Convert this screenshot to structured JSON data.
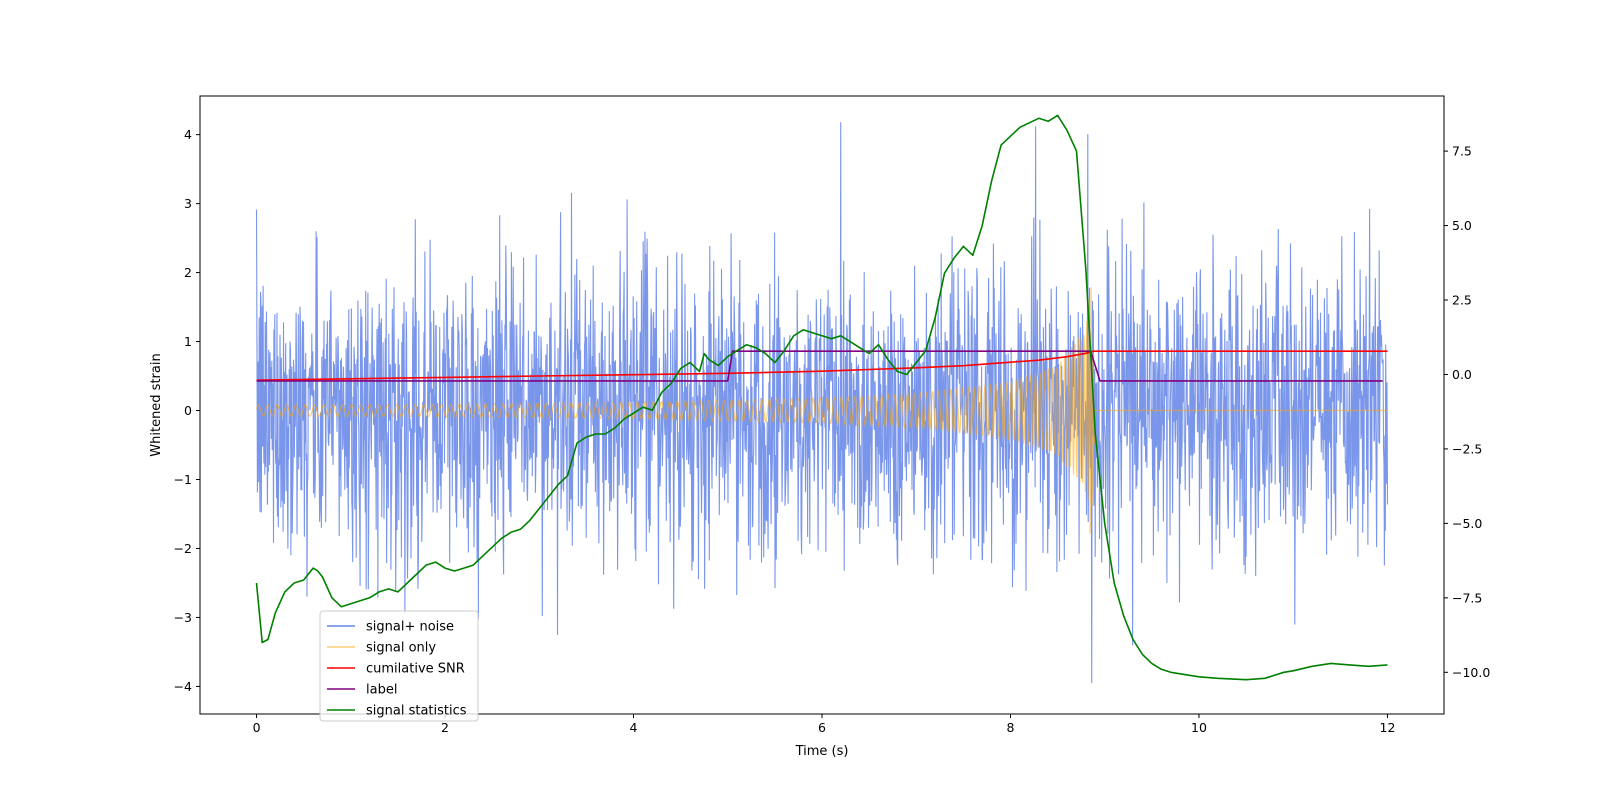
{
  "chart_data": {
    "type": "line",
    "title": "",
    "xlabel": "Time (s)",
    "ylabel": "Whitened strain",
    "y2label": "",
    "xlim": [
      -0.6,
      12.6
    ],
    "ylim": [
      -4.4,
      4.56
    ],
    "y2lim": [
      -11.4,
      9.35
    ],
    "xticks": [
      0,
      2,
      4,
      6,
      8,
      10,
      12
    ],
    "xtick_labels": [
      "0",
      "2",
      "4",
      "6",
      "8",
      "10",
      "12"
    ],
    "yticks": [
      -4,
      -3,
      -2,
      -1,
      0,
      1,
      2,
      3,
      4
    ],
    "ytick_labels": [
      "−4",
      "−3",
      "−2",
      "−1",
      "0",
      "1",
      "2",
      "3",
      "4"
    ],
    "y2ticks": [
      -10.0,
      -7.5,
      -5.0,
      -2.5,
      0.0,
      2.5,
      5.0,
      7.5
    ],
    "y2tick_labels": [
      "−10.0",
      "−7.5",
      "−5.0",
      "−2.5",
      "0.0",
      "2.5",
      "5.0",
      "7.5"
    ],
    "grid": false,
    "legend_position": "lower-left",
    "series": [
      {
        "name": "signal+ noise",
        "axis": "left",
        "color": "#4169e1",
        "description": "noisy whitened strain, approx. standard normal, range about -4 to +4.2 over 0-12 s",
        "x": [
          0,
          12
        ],
        "values": [
          0,
          0
        ],
        "peak_max": 4.18,
        "peak_min": -3.95
      },
      {
        "name": "signal only",
        "axis": "left",
        "color": "#ffa500",
        "description": "chirp signal growing in amplitude until merger at about 8.85 s, then zero",
        "x": [
          0,
          2,
          4,
          6,
          7,
          8,
          8.5,
          8.8,
          8.86,
          8.9,
          12
        ],
        "envelope": [
          0.08,
          0.09,
          0.12,
          0.18,
          0.25,
          0.42,
          0.65,
          1.2,
          2.0,
          0,
          0
        ]
      },
      {
        "name": "cumilative SNR",
        "axis": "left",
        "color": "#ff0000",
        "x": [
          0,
          1,
          2,
          3,
          4,
          5,
          6,
          7,
          7.5,
          8,
          8.3,
          8.6,
          8.8,
          8.88,
          9,
          10,
          12
        ],
        "values": [
          0.44,
          0.46,
          0.48,
          0.5,
          0.52,
          0.54,
          0.57,
          0.62,
          0.65,
          0.7,
          0.73,
          0.78,
          0.83,
          0.86,
          0.86,
          0.86,
          0.86
        ]
      },
      {
        "name": "label",
        "axis": "left",
        "color": "#800080",
        "x": [
          0,
          5.0,
          5.05,
          8.85,
          8.95,
          11.95
        ],
        "values": [
          0.43,
          0.43,
          0.86,
          0.86,
          0.43,
          0.43
        ]
      },
      {
        "name": "signal statistics",
        "axis": "right",
        "color": "#008000",
        "x": [
          0,
          0.06,
          0.12,
          0.2,
          0.3,
          0.4,
          0.5,
          0.6,
          0.65,
          0.7,
          0.8,
          0.9,
          1.0,
          1.1,
          1.2,
          1.3,
          1.4,
          1.5,
          1.6,
          1.7,
          1.8,
          1.9,
          2.0,
          2.1,
          2.2,
          2.3,
          2.4,
          2.5,
          2.6,
          2.7,
          2.8,
          2.9,
          3.0,
          3.1,
          3.2,
          3.3,
          3.4,
          3.5,
          3.6,
          3.7,
          3.8,
          3.9,
          4.0,
          4.1,
          4.2,
          4.3,
          4.4,
          4.5,
          4.6,
          4.7,
          4.75,
          4.8,
          4.9,
          5.0,
          5.1,
          5.2,
          5.3,
          5.4,
          5.5,
          5.6,
          5.7,
          5.8,
          5.9,
          6.0,
          6.1,
          6.2,
          6.3,
          6.4,
          6.5,
          6.6,
          6.7,
          6.8,
          6.9,
          7.0,
          7.1,
          7.2,
          7.3,
          7.4,
          7.5,
          7.6,
          7.7,
          7.8,
          7.9,
          8.0,
          8.1,
          8.2,
          8.3,
          8.4,
          8.5,
          8.6,
          8.7,
          8.8,
          8.9,
          9.0,
          9.1,
          9.2,
          9.3,
          9.4,
          9.5,
          9.6,
          9.7,
          9.8,
          9.9,
          10.0,
          10.2,
          10.5,
          10.7,
          10.9,
          11.0,
          11.2,
          11.4,
          11.6,
          11.8,
          12.0
        ],
        "values": [
          -7.0,
          -9.0,
          -8.9,
          -8.0,
          -7.3,
          -7.0,
          -6.9,
          -6.5,
          -6.6,
          -6.8,
          -7.5,
          -7.8,
          -7.7,
          -7.6,
          -7.5,
          -7.3,
          -7.2,
          -7.3,
          -7.0,
          -6.7,
          -6.4,
          -6.3,
          -6.5,
          -6.6,
          -6.5,
          -6.4,
          -6.1,
          -5.8,
          -5.5,
          -5.3,
          -5.2,
          -4.9,
          -4.5,
          -4.1,
          -3.7,
          -3.4,
          -2.3,
          -2.1,
          -2.0,
          -2.0,
          -1.8,
          -1.5,
          -1.3,
          -1.1,
          -1.2,
          -0.6,
          -0.3,
          0.2,
          0.4,
          0.1,
          0.7,
          0.5,
          0.3,
          0.6,
          0.8,
          1.0,
          0.9,
          0.7,
          0.4,
          0.8,
          1.3,
          1.5,
          1.4,
          1.3,
          1.2,
          1.3,
          1.1,
          0.9,
          0.7,
          1.0,
          0.5,
          0.1,
          0.0,
          0.4,
          0.8,
          1.9,
          3.4,
          3.9,
          4.3,
          4.0,
          5.0,
          6.5,
          7.7,
          8.0,
          8.3,
          8.45,
          8.6,
          8.5,
          8.7,
          8.2,
          7.5,
          3.5,
          -2.0,
          -5.0,
          -7.0,
          -8.1,
          -8.9,
          -9.4,
          -9.7,
          -9.9,
          -10.0,
          -10.05,
          -10.1,
          -10.15,
          -10.2,
          -10.25,
          -10.2,
          -10.0,
          -9.95,
          -9.8,
          -9.7,
          -9.75,
          -9.8,
          -9.75
        ]
      }
    ]
  }
}
